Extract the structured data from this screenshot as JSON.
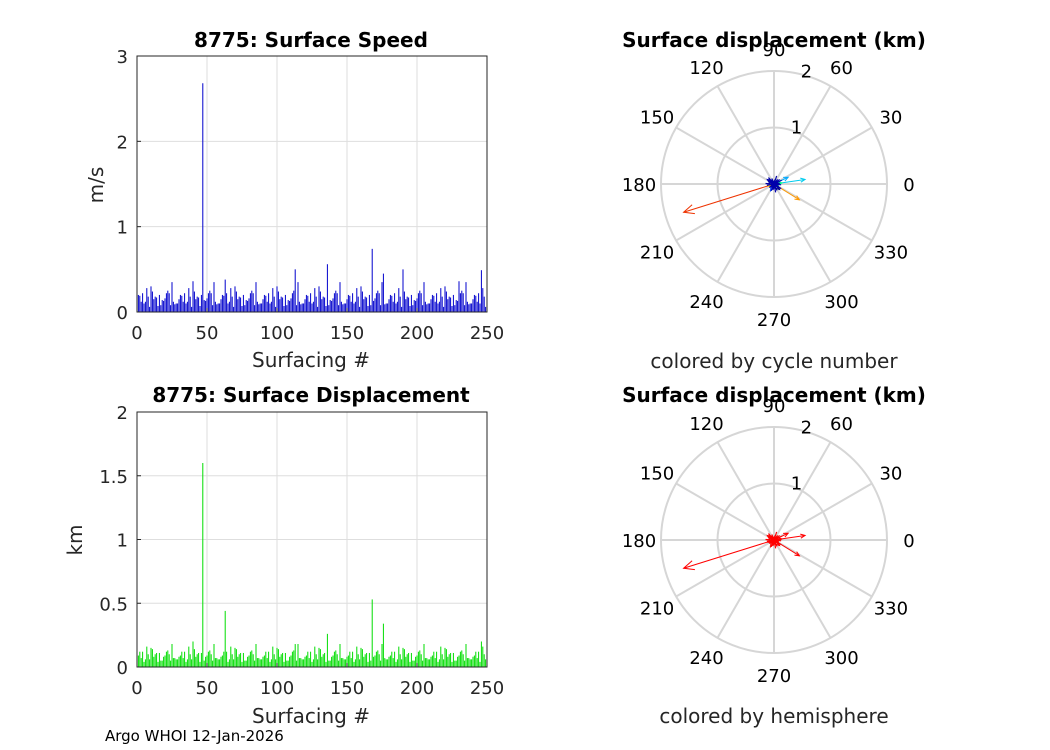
{
  "footer": "Argo WHOI 12-Jan-2026",
  "chart_data": [
    {
      "type": "bar",
      "title": "8775: Surface Speed",
      "xlabel": "Surfacing #",
      "ylabel": "m/s",
      "xlim": [
        0,
        250
      ],
      "ylim": [
        0,
        3
      ],
      "xticks": [
        "0",
        "50",
        "100",
        "150",
        "200",
        "250"
      ],
      "yticks": [
        "0",
        "1",
        "2",
        "3"
      ],
      "color": "#0000cc",
      "base_values": [
        0.15,
        0.08,
        0.22,
        0.12,
        0.18,
        0.1,
        0.25,
        0.06,
        0.2,
        0.14,
        0.3,
        0.09,
        0.17,
        0.12,
        0.22,
        0.07,
        0.19,
        0.13,
        0.24,
        0.1,
        0.16,
        0.28,
        0.08,
        0.2,
        0.12,
        0.35,
        0.15,
        0.1,
        0.22,
        0.18
      ],
      "spikes": [
        {
          "x": 47,
          "y": 2.68
        },
        {
          "x": 168,
          "y": 0.74
        },
        {
          "x": 136,
          "y": 0.56
        },
        {
          "x": 113,
          "y": 0.5
        },
        {
          "x": 190,
          "y": 0.5
        },
        {
          "x": 246,
          "y": 0.49
        },
        {
          "x": 176,
          "y": 0.45
        },
        {
          "x": 63,
          "y": 0.38
        },
        {
          "x": 40,
          "y": 0.36
        },
        {
          "x": 230,
          "y": 0.36
        }
      ]
    },
    {
      "type": "bar",
      "title": "8775: Surface Displacement",
      "xlabel": "Surfacing #",
      "ylabel": "km",
      "xlim": [
        0,
        250
      ],
      "ylim": [
        0,
        2
      ],
      "xticks": [
        "0",
        "50",
        "100",
        "150",
        "200",
        "250"
      ],
      "yticks": [
        "0",
        "0.5",
        "1",
        "1.5",
        "2"
      ],
      "color": "#00dd00",
      "base_values": [
        0.08,
        0.05,
        0.12,
        0.07,
        0.1,
        0.04,
        0.13,
        0.06,
        0.09,
        0.05,
        0.15,
        0.07,
        0.11,
        0.06,
        0.1,
        0.04,
        0.12,
        0.08,
        0.14,
        0.06,
        0.09,
        0.16,
        0.05,
        0.11,
        0.07,
        0.18,
        0.08,
        0.06,
        0.12,
        0.1
      ],
      "spikes": [
        {
          "x": 47,
          "y": 1.6
        },
        {
          "x": 168,
          "y": 0.53
        },
        {
          "x": 63,
          "y": 0.44
        },
        {
          "x": 176,
          "y": 0.34
        },
        {
          "x": 136,
          "y": 0.26
        },
        {
          "x": 40,
          "y": 0.2
        },
        {
          "x": 246,
          "y": 0.2
        },
        {
          "x": 113,
          "y": 0.18
        }
      ]
    },
    {
      "type": "polar-arrows",
      "title": "Surface displacement (km)",
      "caption": "colored by cycle number",
      "rmax": 2,
      "rings": [
        1,
        2
      ],
      "ring_labels": [
        "1",
        "2"
      ],
      "angle_labels": [
        "0",
        "30",
        "60",
        "90",
        "120",
        "150",
        "180",
        "210",
        "240",
        "270",
        "300",
        "330"
      ],
      "arrows": [
        {
          "u": -1.6,
          "v": -0.5,
          "color": "#ee3300"
        },
        {
          "u": 0.55,
          "v": 0.08,
          "color": "#00ccee"
        },
        {
          "u": 0.45,
          "v": -0.28,
          "color": "#ff9900"
        },
        {
          "u": 0.25,
          "v": 0.12,
          "color": "#00aaff"
        },
        {
          "u": -0.12,
          "v": 0.08,
          "color": "#0000aa"
        },
        {
          "u": 0.1,
          "v": -0.1,
          "color": "#000088"
        },
        {
          "u": -0.06,
          "v": -0.12,
          "color": "#0044ff"
        },
        {
          "u": 0.14,
          "v": 0.02,
          "color": "#00ff88"
        },
        {
          "u": -0.1,
          "v": -0.04,
          "color": "#ffcc00"
        }
      ]
    },
    {
      "type": "polar-arrows",
      "title": "Surface displacement (km)",
      "caption": "colored by hemisphere",
      "rmax": 2,
      "rings": [
        1,
        2
      ],
      "ring_labels": [
        "1",
        "2"
      ],
      "angle_labels": [
        "0",
        "30",
        "60",
        "90",
        "120",
        "150",
        "180",
        "210",
        "240",
        "270",
        "300",
        "330"
      ],
      "arrows": [
        {
          "u": -1.6,
          "v": -0.5,
          "color": "#ff0000"
        },
        {
          "u": 0.55,
          "v": 0.08,
          "color": "#ff0000"
        },
        {
          "u": 0.45,
          "v": -0.28,
          "color": "#ff0000"
        },
        {
          "u": 0.25,
          "v": 0.12,
          "color": "#ff0000"
        },
        {
          "u": -0.12,
          "v": 0.08,
          "color": "#ff0000"
        },
        {
          "u": 0.1,
          "v": -0.1,
          "color": "#ff0000"
        },
        {
          "u": -0.06,
          "v": -0.12,
          "color": "#ff0000"
        },
        {
          "u": 0.14,
          "v": 0.02,
          "color": "#ff0000"
        },
        {
          "u": -0.1,
          "v": -0.04,
          "color": "#ff0000"
        }
      ]
    }
  ]
}
